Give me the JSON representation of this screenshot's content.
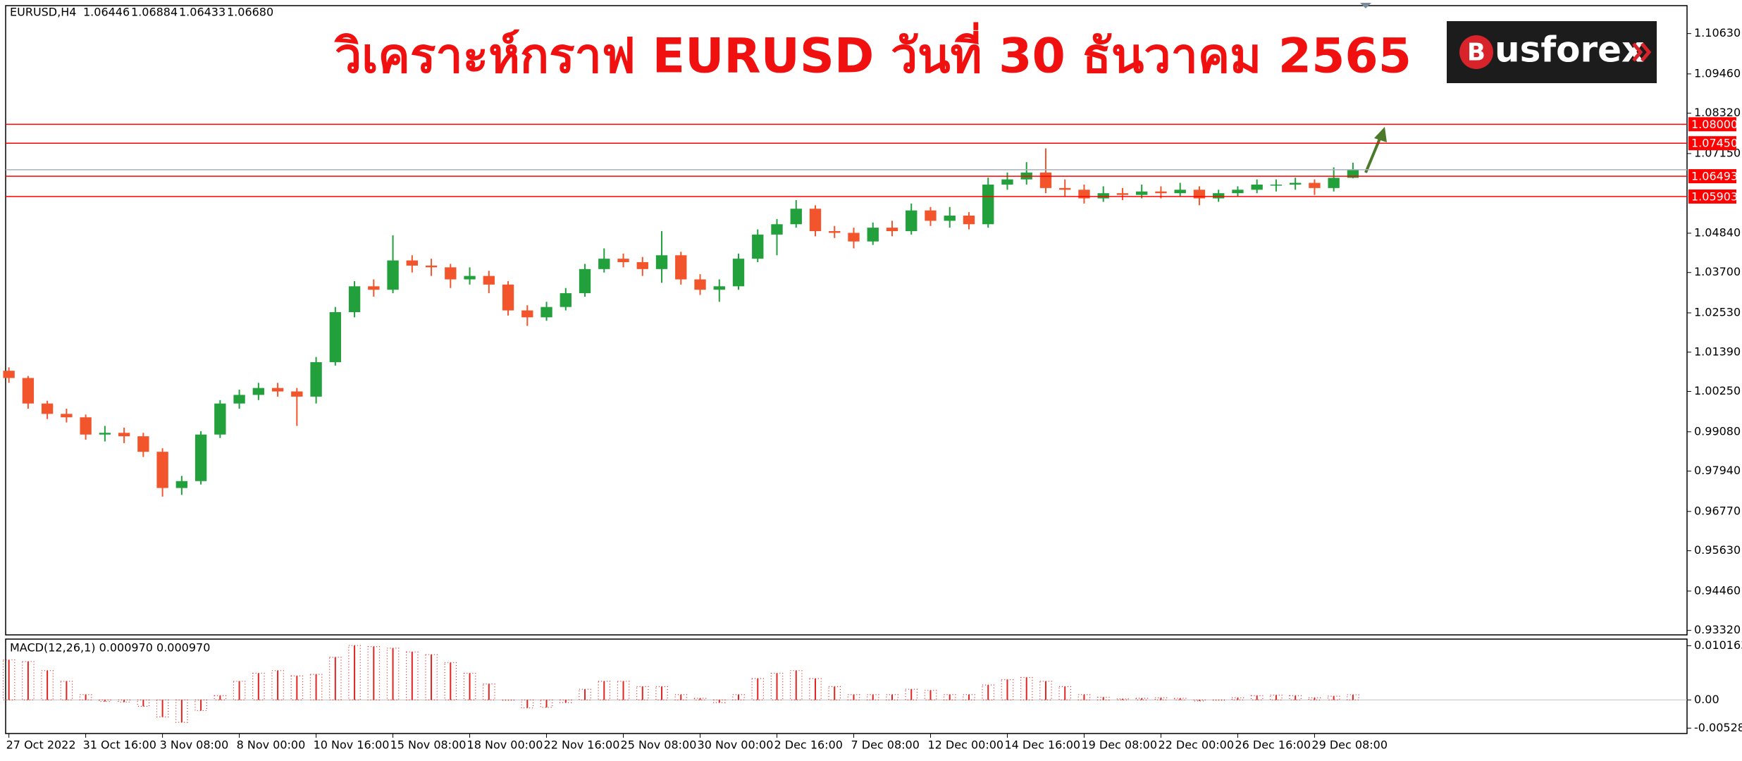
{
  "logo": {
    "mark": "B",
    "text": "usforex"
  },
  "chart_data": {
    "type": "candlestick",
    "title": "วิเคราะห์กราฟ EURUSD วันที่ 30 ธันวาคม 2565",
    "symbol": "EURUSD,H4",
    "last_bar_labels": [
      "1.06446",
      "1.06884",
      "1.06433",
      "1.06680"
    ],
    "open": [
      1.0085,
      1.0064,
      0.999,
      0.996,
      0.995,
      0.99,
      0.9905,
      0.9895,
      0.985,
      0.9745,
      0.9765,
      0.99,
      0.999,
      1.0015,
      1.0035,
      1.0025,
      1.001,
      1.011,
      1.0255,
      1.033,
      1.032,
      1.0405,
      1.039,
      1.0385,
      1.035,
      1.036,
      1.0335,
      1.026,
      1.024,
      1.027,
      1.031,
      1.038,
      1.041,
      1.04,
      1.038,
      1.042,
      1.035,
      1.032,
      1.033,
      1.041,
      1.048,
      1.051,
      1.0555,
      1.049,
      1.0485,
      1.046,
      1.05,
      1.049,
      1.055,
      1.052,
      1.0535,
      1.051,
      1.0625,
      1.064,
      1.066,
      1.0615,
      1.061,
      1.0585,
      1.06,
      1.0595,
      1.0605,
      1.06,
      1.061,
      1.0585,
      1.06,
      1.061,
      1.0625,
      1.0625,
      1.063,
      1.0615,
      1.06446
    ],
    "high": [
      1.0095,
      1.007,
      0.9998,
      0.9975,
      0.9958,
      0.9925,
      0.992,
      0.9905,
      0.986,
      0.978,
      0.991,
      1.0,
      1.003,
      1.005,
      1.005,
      1.0035,
      1.0125,
      1.027,
      1.0345,
      1.035,
      1.0478,
      1.042,
      1.041,
      1.0395,
      1.0385,
      1.0375,
      1.0345,
      1.0275,
      1.0285,
      1.0325,
      1.0395,
      1.044,
      1.0425,
      1.0415,
      1.049,
      1.043,
      1.0365,
      1.035,
      1.0425,
      1.0495,
      1.0525,
      1.058,
      1.0565,
      1.0505,
      1.05,
      1.0515,
      1.052,
      1.057,
      1.056,
      1.056,
      1.0545,
      1.0645,
      1.066,
      1.069,
      1.073,
      1.064,
      1.0625,
      1.062,
      1.0615,
      1.0625,
      1.062,
      1.063,
      1.062,
      1.061,
      1.062,
      1.064,
      1.064,
      1.0645,
      1.064,
      1.0675,
      1.06884
    ],
    "low": [
      1.005,
      0.9975,
      0.9945,
      0.9935,
      0.9885,
      0.988,
      0.9875,
      0.9835,
      0.972,
      0.9725,
      0.9755,
      0.989,
      0.9975,
      1.0,
      1.001,
      0.9925,
      0.999,
      1.01,
      1.024,
      1.03,
      1.031,
      1.037,
      1.036,
      1.0325,
      1.0335,
      1.031,
      1.0245,
      1.0215,
      1.023,
      1.026,
      1.03,
      1.037,
      1.0385,
      1.036,
      1.034,
      1.0335,
      1.0305,
      1.0285,
      1.032,
      1.04,
      1.042,
      1.05,
      1.0475,
      1.047,
      1.044,
      1.045,
      1.0475,
      1.048,
      1.0505,
      1.05,
      1.0495,
      1.05,
      1.061,
      1.0625,
      1.06,
      1.059,
      1.057,
      1.0575,
      1.058,
      1.0585,
      1.0585,
      1.059,
      1.0565,
      1.0575,
      1.059,
      1.06,
      1.0605,
      1.061,
      1.0595,
      1.0605,
      1.06433
    ],
    "close": [
      1.0064,
      0.999,
      0.996,
      0.995,
      0.99,
      0.9905,
      0.9895,
      0.985,
      0.9745,
      0.9765,
      0.99,
      0.999,
      1.0015,
      1.0035,
      1.0025,
      1.001,
      1.011,
      1.0255,
      1.033,
      1.032,
      1.0405,
      1.039,
      1.0385,
      1.035,
      1.036,
      1.0335,
      1.026,
      1.024,
      1.027,
      1.031,
      1.038,
      1.041,
      1.04,
      1.038,
      1.042,
      1.035,
      1.032,
      1.033,
      1.041,
      1.048,
      1.051,
      1.0555,
      1.049,
      1.0485,
      1.046,
      1.05,
      1.049,
      1.055,
      1.052,
      1.0535,
      1.051,
      1.0625,
      1.064,
      1.066,
      1.0615,
      1.061,
      1.0585,
      1.06,
      1.0595,
      1.0605,
      1.06,
      1.061,
      1.0585,
      1.06,
      1.061,
      1.0625,
      1.0625,
      1.063,
      1.0615,
      1.06446,
      1.0668
    ],
    "up_color": "#21a03c",
    "down_color": "#f2552c",
    "xlim": [
      -0.17,
      87.4
    ],
    "xticks": [
      {
        "value": 0,
        "label": "27 Oct 2022"
      },
      {
        "value": 4,
        "label": "31 Oct 16:00"
      },
      {
        "value": 8,
        "label": "3 Nov 08:00"
      },
      {
        "value": 12,
        "label": "8 Nov 00:00"
      },
      {
        "value": 16,
        "label": "10 Nov 16:00"
      },
      {
        "value": 20,
        "label": "15 Nov 08:00"
      },
      {
        "value": 24,
        "label": "18 Nov 00:00"
      },
      {
        "value": 28,
        "label": "22 Nov 16:00"
      },
      {
        "value": 32,
        "label": "25 Nov 08:00"
      },
      {
        "value": 36,
        "label": "30 Nov 00:00"
      },
      {
        "value": 40,
        "label": "2 Dec 16:00"
      },
      {
        "value": 44,
        "label": "7 Dec 08:00"
      },
      {
        "value": 48,
        "label": "12 Dec 00:00"
      },
      {
        "value": 52,
        "label": "14 Dec 16:00"
      },
      {
        "value": 56,
        "label": "19 Dec 08:00"
      },
      {
        "value": 60,
        "label": "22 Dec 00:00"
      },
      {
        "value": 64,
        "label": "26 Dec 16:00"
      },
      {
        "value": 68,
        "label": "29 Dec 08:00"
      }
    ],
    "ylim": [
      0.9319,
      1.1144
    ],
    "yticks": [
      {
        "value": 1.1063,
        "label": "1.10630"
      },
      {
        "value": 1.0946,
        "label": "1.09460"
      },
      {
        "value": 1.0832,
        "label": "1.08320"
      },
      {
        "value": 1.0715,
        "label": "1.07150"
      },
      {
        "value": 1.0484,
        "label": "1.04840"
      },
      {
        "value": 1.037,
        "label": "1.03700"
      },
      {
        "value": 1.0253,
        "label": "1.02530"
      },
      {
        "value": 1.0139,
        "label": "1.01390"
      },
      {
        "value": 1.0025,
        "label": "1.00250"
      },
      {
        "value": 0.9908,
        "label": "0.99080"
      },
      {
        "value": 0.9794,
        "label": "0.97940"
      },
      {
        "value": 0.9677,
        "label": "0.96770"
      },
      {
        "value": 0.9563,
        "label": "0.95630"
      },
      {
        "value": 0.9446,
        "label": "0.94460"
      },
      {
        "value": 0.9332,
        "label": "0.93320"
      }
    ],
    "levels": [
      {
        "value": 1.08,
        "label": "1.08000"
      },
      {
        "value": 1.0745,
        "label": "1.07450"
      },
      {
        "value": 1.06493,
        "label": "1.06493"
      },
      {
        "value": 1.05903,
        "label": "1.05903"
      }
    ],
    "level_color": "#ff0000",
    "bid_line": 1.0668,
    "bid_color": "#a9b1ba",
    "macd": {
      "title": "MACD(12,26,1) 0.000970 0.000970",
      "color": "#e3231f",
      "values": [
        0.0075,
        0.0072,
        0.0055,
        0.0035,
        0.001,
        -0.0003,
        -0.0004,
        -0.0012,
        -0.0032,
        -0.0042,
        -0.002,
        0.0008,
        0.0035,
        0.005,
        0.0055,
        0.0045,
        0.0048,
        0.008,
        0.0102,
        0.01,
        0.0097,
        0.009,
        0.0085,
        0.007,
        0.005,
        0.003,
        0.0,
        -0.0015,
        -0.0014,
        -0.0005,
        0.002,
        0.0035,
        0.0035,
        0.0025,
        0.0025,
        0.001,
        0.0003,
        -0.0005,
        0.001,
        0.004,
        0.005,
        0.0055,
        0.004,
        0.0025,
        0.001,
        0.001,
        0.001,
        0.002,
        0.0018,
        0.001,
        0.001,
        0.0028,
        0.0038,
        0.0042,
        0.0035,
        0.0025,
        0.001,
        0.0005,
        0.0002,
        0.0003,
        0.0004,
        0.0003,
        -0.0002,
        0.0,
        0.0004,
        0.0008,
        0.0009,
        0.0008,
        0.0004,
        0.0007,
        0.00097
      ],
      "ylim": [
        -0.0063,
        0.0114
      ],
      "yticks": [
        0.010163,
        {
          "value": 0,
          "label": "0.00"
        },
        -0.005287
      ]
    }
  }
}
